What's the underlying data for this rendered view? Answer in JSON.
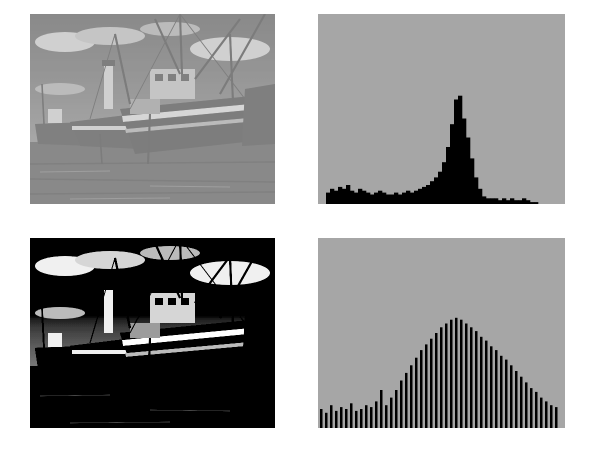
{
  "histograms": [
    {
      "values": [
        6,
        8,
        7,
        9,
        8,
        10,
        7,
        6,
        8,
        7,
        6,
        5,
        6,
        7,
        6,
        5,
        5,
        6,
        5,
        6,
        7,
        6,
        7,
        8,
        9,
        10,
        12,
        14,
        17,
        22,
        30,
        42,
        55,
        57,
        45,
        35,
        24,
        14,
        8,
        4,
        3,
        3,
        3,
        2,
        3,
        2,
        3,
        2,
        2,
        3,
        2,
        1,
        1,
        0
      ]
    },
    {
      "values": [
        10,
        8,
        12,
        9,
        11,
        10,
        13,
        9,
        10,
        12,
        11,
        14,
        20,
        12,
        16,
        20,
        25,
        29,
        33,
        37,
        41,
        44,
        47,
        50,
        53,
        55,
        57,
        58,
        57,
        55,
        53,
        51,
        48,
        46,
        43,
        41,
        38,
        36,
        33,
        30,
        27,
        24,
        21,
        19,
        16,
        14,
        12,
        11
      ]
    }
  ]
}
